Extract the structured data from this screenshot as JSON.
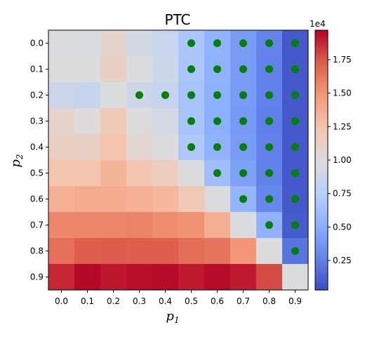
{
  "chart_data": {
    "type": "heatmap",
    "title": "PTC",
    "xlabel": "p",
    "xlabel_sub": "1",
    "ylabel": "p",
    "ylabel_sub": "2",
    "x_categories": [
      "0.0",
      "0.1",
      "0.2",
      "0.3",
      "0.4",
      "0.5",
      "0.6",
      "0.7",
      "0.8",
      "0.9"
    ],
    "y_categories": [
      "0.0",
      "0.1",
      "0.2",
      "0.3",
      "0.4",
      "0.5",
      "0.6",
      "0.7",
      "0.8",
      "0.9"
    ],
    "values": [
      [
        9800,
        9700,
        10800,
        9300,
        8600,
        6800,
        5400,
        4100,
        2900,
        900
      ],
      [
        10000,
        10000,
        11200,
        9900,
        8900,
        6800,
        5300,
        4000,
        2700,
        900
      ],
      [
        8800,
        8500,
        9900,
        9000,
        8400,
        6600,
        5200,
        4000,
        2700,
        900
      ],
      [
        10800,
        10100,
        11800,
        10000,
        9400,
        6700,
        5100,
        3900,
        2600,
        900
      ],
      [
        11300,
        11200,
        12400,
        10500,
        10000,
        7000,
        5400,
        4000,
        2700,
        900
      ],
      [
        12300,
        12300,
        13300,
        12200,
        11600,
        9900,
        6200,
        4300,
        2800,
        900
      ],
      [
        13600,
        13800,
        13800,
        13600,
        13200,
        12000,
        9800,
        5600,
        3000,
        900
      ],
      [
        15600,
        15700,
        15700,
        15800,
        15400,
        15200,
        13700,
        9900,
        5300,
        1000
      ],
      [
        16600,
        17300,
        17400,
        17300,
        17300,
        16700,
        16400,
        15000,
        9900,
        2100
      ],
      [
        18800,
        19600,
        19200,
        19400,
        19500,
        19100,
        19500,
        19100,
        17800,
        9900
      ]
    ],
    "markers": [
      [
        0,
        5
      ],
      [
        0,
        6
      ],
      [
        0,
        7
      ],
      [
        0,
        8
      ],
      [
        0,
        9
      ],
      [
        1,
        5
      ],
      [
        1,
        6
      ],
      [
        1,
        7
      ],
      [
        1,
        8
      ],
      [
        1,
        9
      ],
      [
        2,
        3
      ],
      [
        2,
        4
      ],
      [
        2,
        5
      ],
      [
        2,
        6
      ],
      [
        2,
        7
      ],
      [
        2,
        8
      ],
      [
        2,
        9
      ],
      [
        3,
        5
      ],
      [
        3,
        6
      ],
      [
        3,
        7
      ],
      [
        3,
        8
      ],
      [
        3,
        9
      ],
      [
        4,
        5
      ],
      [
        4,
        6
      ],
      [
        4,
        7
      ],
      [
        4,
        8
      ],
      [
        4,
        9
      ],
      [
        5,
        6
      ],
      [
        5,
        7
      ],
      [
        5,
        8
      ],
      [
        5,
        9
      ],
      [
        6,
        7
      ],
      [
        6,
        8
      ],
      [
        6,
        9
      ],
      [
        7,
        8
      ],
      [
        7,
        9
      ],
      [
        8,
        9
      ]
    ],
    "marker_color": "#008000",
    "colormap": "coolwarm",
    "vmin": 300,
    "vmax": 19700,
    "colorbar": {
      "ticks": [
        0.25,
        0.5,
        0.75,
        1.0,
        1.25,
        1.5,
        1.75
      ],
      "tick_labels": [
        "0.25",
        "0.50",
        "0.75",
        "1.00",
        "1.25",
        "1.50",
        "1.75"
      ],
      "multiplier": "1e4"
    }
  }
}
